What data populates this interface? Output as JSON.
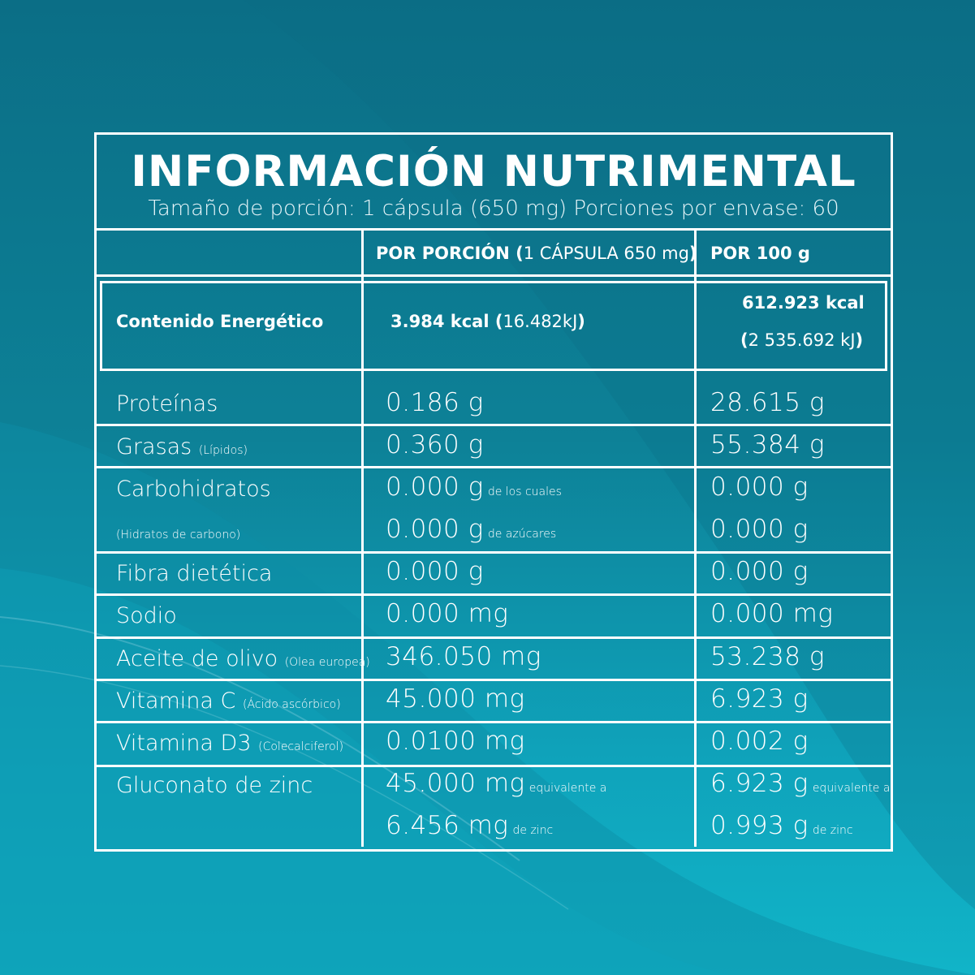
{
  "header": {
    "title": "INFORMACIÓN NUTRIMENTAL",
    "subtitle": "Tamaño de porción: 1 cápsula (650 mg) Porciones por envase: 60"
  },
  "columns": {
    "per_portion_bold": "POR PORCIÓN (",
    "per_portion_light": "1 CÁPSULA 650 mg",
    "per_portion_close": ")",
    "per_100g": "POR 100 g"
  },
  "energy": {
    "label": "Contenido Energético",
    "per_portion_bold": "3.984 kcal (",
    "per_portion_light": "16.482kJ",
    "per_portion_close": ")",
    "per_100g_line1": "612.923 kcal",
    "per_100g_open": "(",
    "per_100g_light": "2 535.692 kJ",
    "per_100g_close": ")"
  },
  "rows": [
    {
      "label": "Proteínas",
      "per_portion": "0.186 g",
      "per_100g": "28.615 g"
    },
    {
      "label": "Grasas",
      "note": "(Lípidos)",
      "per_portion": "0.360 g",
      "per_100g": "55.384 g"
    },
    {
      "label": "Carbohidratos",
      "note": "(Hidratos de carbono)",
      "per_portion": "0.000 g",
      "per_portion_note": "de los cuales",
      "per_portion_2": "0.000 g",
      "per_portion_2_note": "de azúcares",
      "per_100g": "0.000 g",
      "per_100g_2": "0.000 g"
    },
    {
      "label": "Fibra dietética",
      "per_portion": "0.000 g",
      "per_100g": "0.000 g"
    },
    {
      "label": "Sodio",
      "per_portion": "0.000 mg",
      "per_100g": "0.000 mg"
    },
    {
      "label": "Aceite de olivo",
      "note": "(Olea europea)",
      "per_portion": "346.050 mg",
      "per_100g": "53.238 g"
    },
    {
      "label": "Vitamina C",
      "note": "(Ácido ascórbico)",
      "per_portion": "45.000 mg",
      "per_100g": "6.923 g"
    },
    {
      "label": "Vitamina D3",
      "note": "(Colecalciferol)",
      "per_portion": "0.0100 mg",
      "per_100g": "0.002 g"
    },
    {
      "label": "Gluconato de zinc",
      "per_portion": "45.000 mg",
      "per_portion_note": "equivalente a",
      "per_portion_2": "6.456 mg",
      "per_portion_2_note": "de zinc",
      "per_100g": "6.923 g",
      "per_100g_note": "equivalente a",
      "per_100g_2": "0.993 g",
      "per_100g_2_note": "de zinc"
    }
  ]
}
